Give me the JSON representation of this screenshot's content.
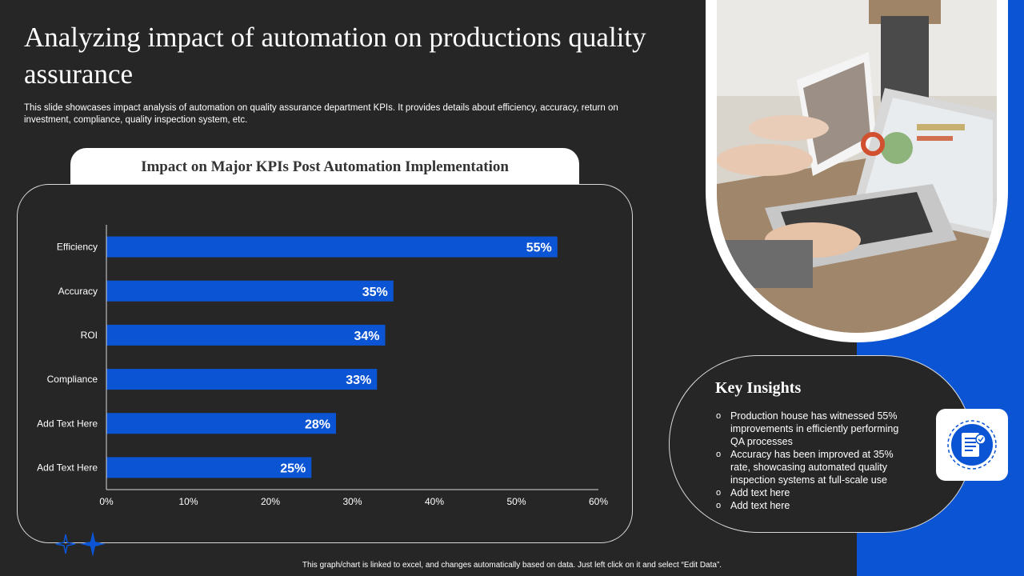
{
  "title": "Analyzing impact of automation on productions quality assurance",
  "subtitle": "This slide showcases impact analysis of automation on quality assurance department KPIs. It provides details about efficiency, accuracy, return on investment, compliance, quality inspection system, etc.",
  "chart_panel_title": "Impact  on Major  KPIs Post Automation  Implementation",
  "colors": {
    "bar": "#0b55d4",
    "background": "#262626",
    "accent": "#0b55d4"
  },
  "chart_data": {
    "type": "bar",
    "orientation": "horizontal",
    "categories": [
      "Efficiency",
      "Accuracy",
      "ROI",
      "Compliance",
      "Add Text Here",
      "Add Text Here"
    ],
    "values": [
      55,
      35,
      34,
      33,
      28,
      25
    ],
    "value_labels": [
      "55%",
      "35%",
      "34%",
      "33%",
      "28%",
      "25%"
    ],
    "xlim": [
      0,
      60
    ],
    "x_ticks": [
      "0%",
      "10%",
      "20%",
      "30%",
      "40%",
      "50%",
      "60%"
    ],
    "title": "Impact  on Major  KPIs Post Automation  Implementation",
    "xlabel": "",
    "ylabel": "",
    "grid": false,
    "legend": "none"
  },
  "insights": {
    "title": "Key Insights",
    "items": [
      "Production house has witnessed 55% improvements  in efficiently performing QA processes",
      "Accuracy has been improved  at 35% rate, showcasing automated quality inspection systems at full-scale  use",
      "Add text here",
      "Add text here"
    ],
    "icon": "document-checklist-icon"
  },
  "photo": {
    "icon": "laptop-dashboard-photo"
  },
  "footer": "This graph/chart is linked to excel, and changes automatically based on data. Just left click on it and select “Edit Data”."
}
